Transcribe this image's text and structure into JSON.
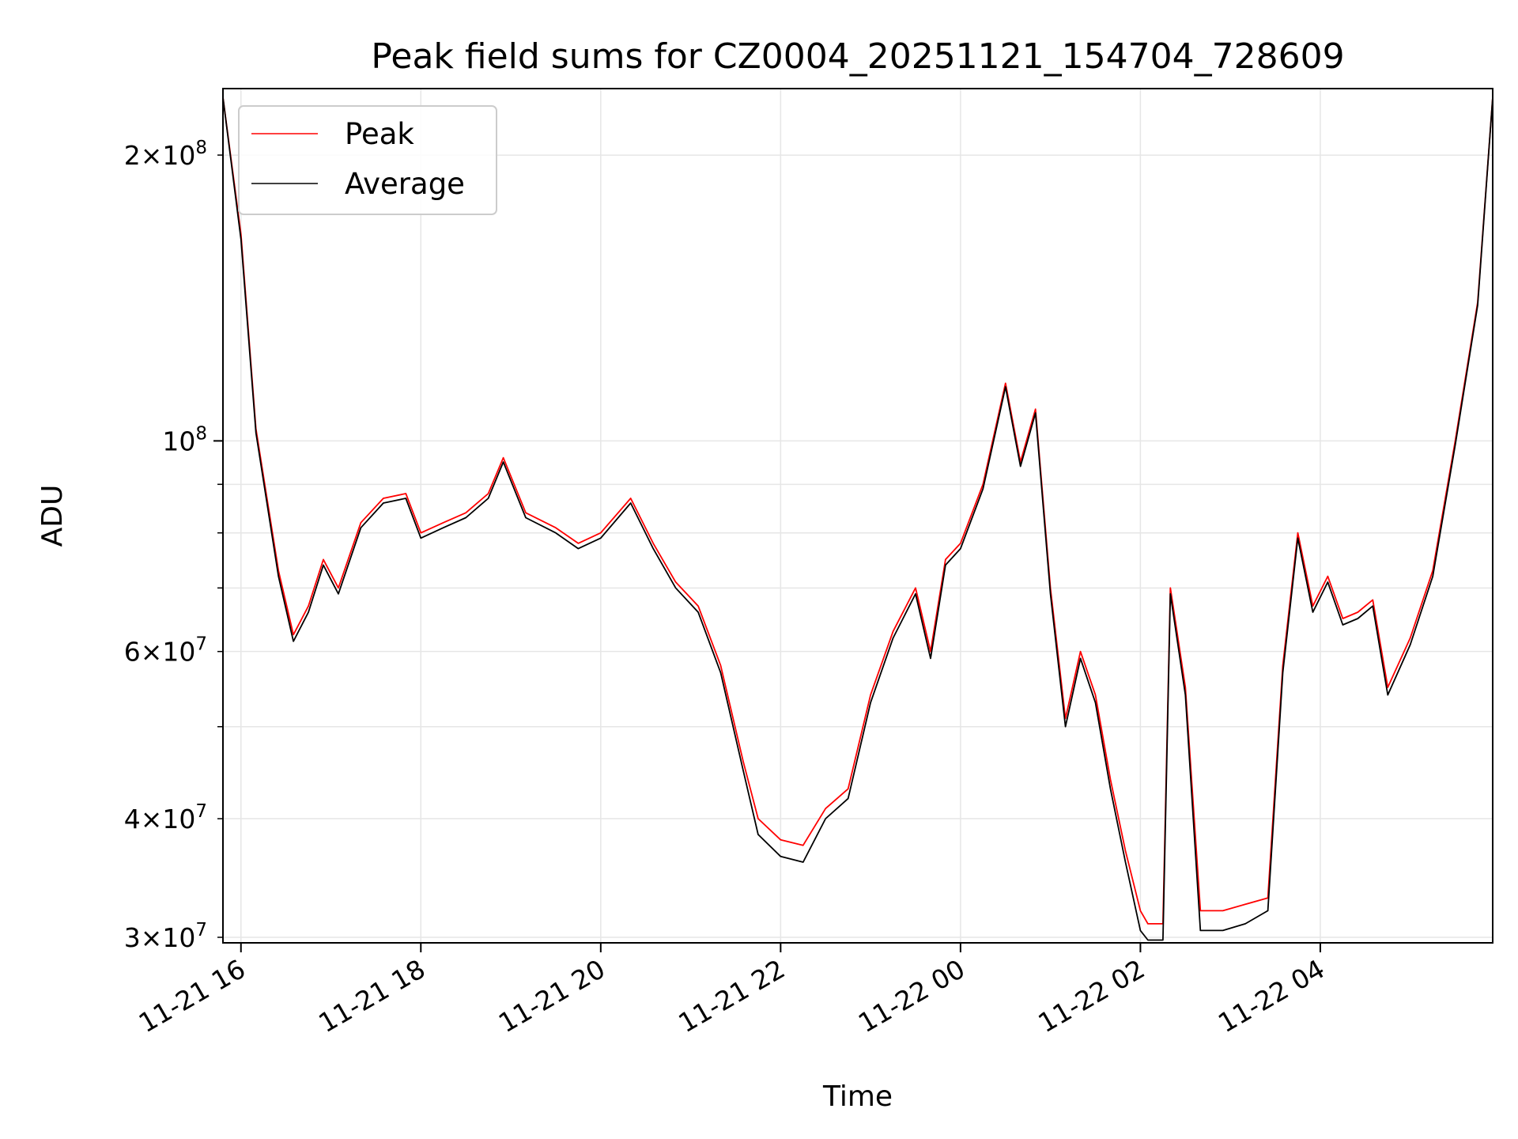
{
  "chart_data": {
    "type": "line",
    "title": "Peak field sums for CZ0004_20251121_154704_728609",
    "xlabel": "Time",
    "ylabel": "ADU",
    "y_scale": "log",
    "xlim": [
      "2025-11-21 15:48",
      "2025-11-22 05:55"
    ],
    "ylim": [
      29600000,
      235000000
    ],
    "x_ticks": [
      {
        "value": "2025-11-21 16:00",
        "label": "11-21 16"
      },
      {
        "value": "2025-11-21 18:00",
        "label": "11-21 18"
      },
      {
        "value": "2025-11-21 20:00",
        "label": "11-21 20"
      },
      {
        "value": "2025-11-21 22:00",
        "label": "11-21 22"
      },
      {
        "value": "2025-11-22 00:00",
        "label": "11-22 00"
      },
      {
        "value": "2025-11-22 02:00",
        "label": "11-22 02"
      },
      {
        "value": "2025-11-22 04:00",
        "label": "11-22 04"
      }
    ],
    "y_major_ticks": [
      {
        "value": 100000000,
        "mantissa": "",
        "exp": "8"
      }
    ],
    "y_minor_ticks": [
      {
        "value": 30000000,
        "mantissa": "3",
        "exp": "7"
      },
      {
        "value": 40000000,
        "mantissa": "4",
        "exp": "7"
      },
      {
        "value": 60000000,
        "mantissa": "6",
        "exp": "7"
      },
      {
        "value": 200000000,
        "mantissa": "2",
        "exp": "8"
      }
    ],
    "y_unlabeled_minor": [
      50000000,
      70000000,
      80000000,
      90000000
    ],
    "grid": true,
    "legend": {
      "position": "top-left"
    },
    "series": [
      {
        "name": "Peak",
        "color": "#ff0000",
        "x": [
          "2025-11-21 15:48",
          "2025-11-21 16:00",
          "2025-11-21 16:10",
          "2025-11-21 16:25",
          "2025-11-21 16:35",
          "2025-11-21 16:45",
          "2025-11-21 16:55",
          "2025-11-21 17:05",
          "2025-11-21 17:20",
          "2025-11-21 17:35",
          "2025-11-21 17:50",
          "2025-11-21 18:00",
          "2025-11-21 18:15",
          "2025-11-21 18:30",
          "2025-11-21 18:45",
          "2025-11-21 18:55",
          "2025-11-21 19:10",
          "2025-11-21 19:30",
          "2025-11-21 19:45",
          "2025-11-21 20:00",
          "2025-11-21 20:20",
          "2025-11-21 20:35",
          "2025-11-21 20:50",
          "2025-11-21 21:05",
          "2025-11-21 21:20",
          "2025-11-21 21:35",
          "2025-11-21 21:45",
          "2025-11-21 22:00",
          "2025-11-21 22:15",
          "2025-11-21 22:30",
          "2025-11-21 22:45",
          "2025-11-21 23:00",
          "2025-11-21 23:15",
          "2025-11-21 23:30",
          "2025-11-21 23:40",
          "2025-11-21 23:50",
          "2025-11-22 00:00",
          "2025-11-22 00:15",
          "2025-11-22 00:30",
          "2025-11-22 00:40",
          "2025-11-22 00:50",
          "2025-11-22 01:00",
          "2025-11-22 01:10",
          "2025-11-22 01:20",
          "2025-11-22 01:30",
          "2025-11-22 01:40",
          "2025-11-22 01:50",
          "2025-11-22 02:00",
          "2025-11-22 02:05",
          "2025-11-22 02:15",
          "2025-11-22 02:20",
          "2025-11-22 02:30",
          "2025-11-22 02:40",
          "2025-11-22 02:55",
          "2025-11-22 03:10",
          "2025-11-22 03:25",
          "2025-11-22 03:35",
          "2025-11-22 03:45",
          "2025-11-22 03:55",
          "2025-11-22 04:05",
          "2025-11-22 04:15",
          "2025-11-22 04:25",
          "2025-11-22 04:35",
          "2025-11-22 04:45",
          "2025-11-22 05:00",
          "2025-11-22 05:15",
          "2025-11-22 05:30",
          "2025-11-22 05:45",
          "2025-11-22 05:55"
        ],
        "y": [
          230000000,
          165000000,
          103000000,
          73000000,
          62500000,
          67000000,
          75000000,
          70000000,
          82000000,
          87000000,
          88000000,
          80000000,
          82000000,
          84000000,
          88000000,
          96000000,
          84000000,
          81000000,
          78000000,
          80000000,
          87000000,
          78000000,
          71000000,
          67000000,
          58000000,
          46000000,
          40000000,
          38000000,
          37500000,
          41000000,
          43000000,
          54000000,
          63000000,
          70000000,
          60000000,
          75000000,
          78000000,
          90000000,
          115000000,
          95000000,
          108000000,
          70000000,
          51000000,
          60000000,
          54000000,
          44000000,
          37000000,
          32000000,
          31000000,
          31000000,
          70000000,
          55000000,
          32000000,
          32000000,
          32500000,
          33000000,
          58000000,
          80000000,
          67000000,
          72000000,
          65000000,
          66000000,
          68000000,
          55000000,
          62000000,
          73000000,
          100000000,
          140000000,
          230000000
        ]
      },
      {
        "name": "Average",
        "color": "#000000",
        "x": [
          "2025-11-21 15:48",
          "2025-11-21 16:00",
          "2025-11-21 16:10",
          "2025-11-21 16:25",
          "2025-11-21 16:35",
          "2025-11-21 16:45",
          "2025-11-21 16:55",
          "2025-11-21 17:05",
          "2025-11-21 17:20",
          "2025-11-21 17:35",
          "2025-11-21 17:50",
          "2025-11-21 18:00",
          "2025-11-21 18:15",
          "2025-11-21 18:30",
          "2025-11-21 18:45",
          "2025-11-21 18:55",
          "2025-11-21 19:10",
          "2025-11-21 19:30",
          "2025-11-21 19:45",
          "2025-11-21 20:00",
          "2025-11-21 20:20",
          "2025-11-21 20:35",
          "2025-11-21 20:50",
          "2025-11-21 21:05",
          "2025-11-21 21:20",
          "2025-11-21 21:35",
          "2025-11-21 21:45",
          "2025-11-21 22:00",
          "2025-11-21 22:15",
          "2025-11-21 22:30",
          "2025-11-21 22:45",
          "2025-11-21 23:00",
          "2025-11-21 23:15",
          "2025-11-21 23:30",
          "2025-11-21 23:40",
          "2025-11-21 23:50",
          "2025-11-22 00:00",
          "2025-11-22 00:15",
          "2025-11-22 00:30",
          "2025-11-22 00:40",
          "2025-11-22 00:50",
          "2025-11-22 01:00",
          "2025-11-22 01:10",
          "2025-11-22 01:20",
          "2025-11-22 01:30",
          "2025-11-22 01:40",
          "2025-11-22 01:50",
          "2025-11-22 02:00",
          "2025-11-22 02:05",
          "2025-11-22 02:15",
          "2025-11-22 02:20",
          "2025-11-22 02:30",
          "2025-11-22 02:40",
          "2025-11-22 02:55",
          "2025-11-22 03:10",
          "2025-11-22 03:25",
          "2025-11-22 03:35",
          "2025-11-22 03:45",
          "2025-11-22 03:55",
          "2025-11-22 04:05",
          "2025-11-22 04:15",
          "2025-11-22 04:25",
          "2025-11-22 04:35",
          "2025-11-22 04:45",
          "2025-11-22 05:00",
          "2025-11-22 05:15",
          "2025-11-22 05:30",
          "2025-11-22 05:45",
          "2025-11-22 05:55"
        ],
        "y": [
          230000000,
          163000000,
          102000000,
          72000000,
          61500000,
          66000000,
          74000000,
          69000000,
          81000000,
          86000000,
          87000000,
          79000000,
          81000000,
          83000000,
          87000000,
          95000000,
          83000000,
          80000000,
          77000000,
          79000000,
          86000000,
          77000000,
          70000000,
          66000000,
          57000000,
          45000000,
          38500000,
          36500000,
          36000000,
          40000000,
          42000000,
          53000000,
          62000000,
          69000000,
          59000000,
          74000000,
          77000000,
          89000000,
          114000000,
          94000000,
          107000000,
          69000000,
          50000000,
          59000000,
          53000000,
          43000000,
          36000000,
          30500000,
          29800000,
          29800000,
          69000000,
          54000000,
          30500000,
          30500000,
          31000000,
          32000000,
          57000000,
          79000000,
          66000000,
          71000000,
          64000000,
          65000000,
          67000000,
          54000000,
          61000000,
          72000000,
          99000000,
          139000000,
          230000000
        ]
      }
    ]
  }
}
